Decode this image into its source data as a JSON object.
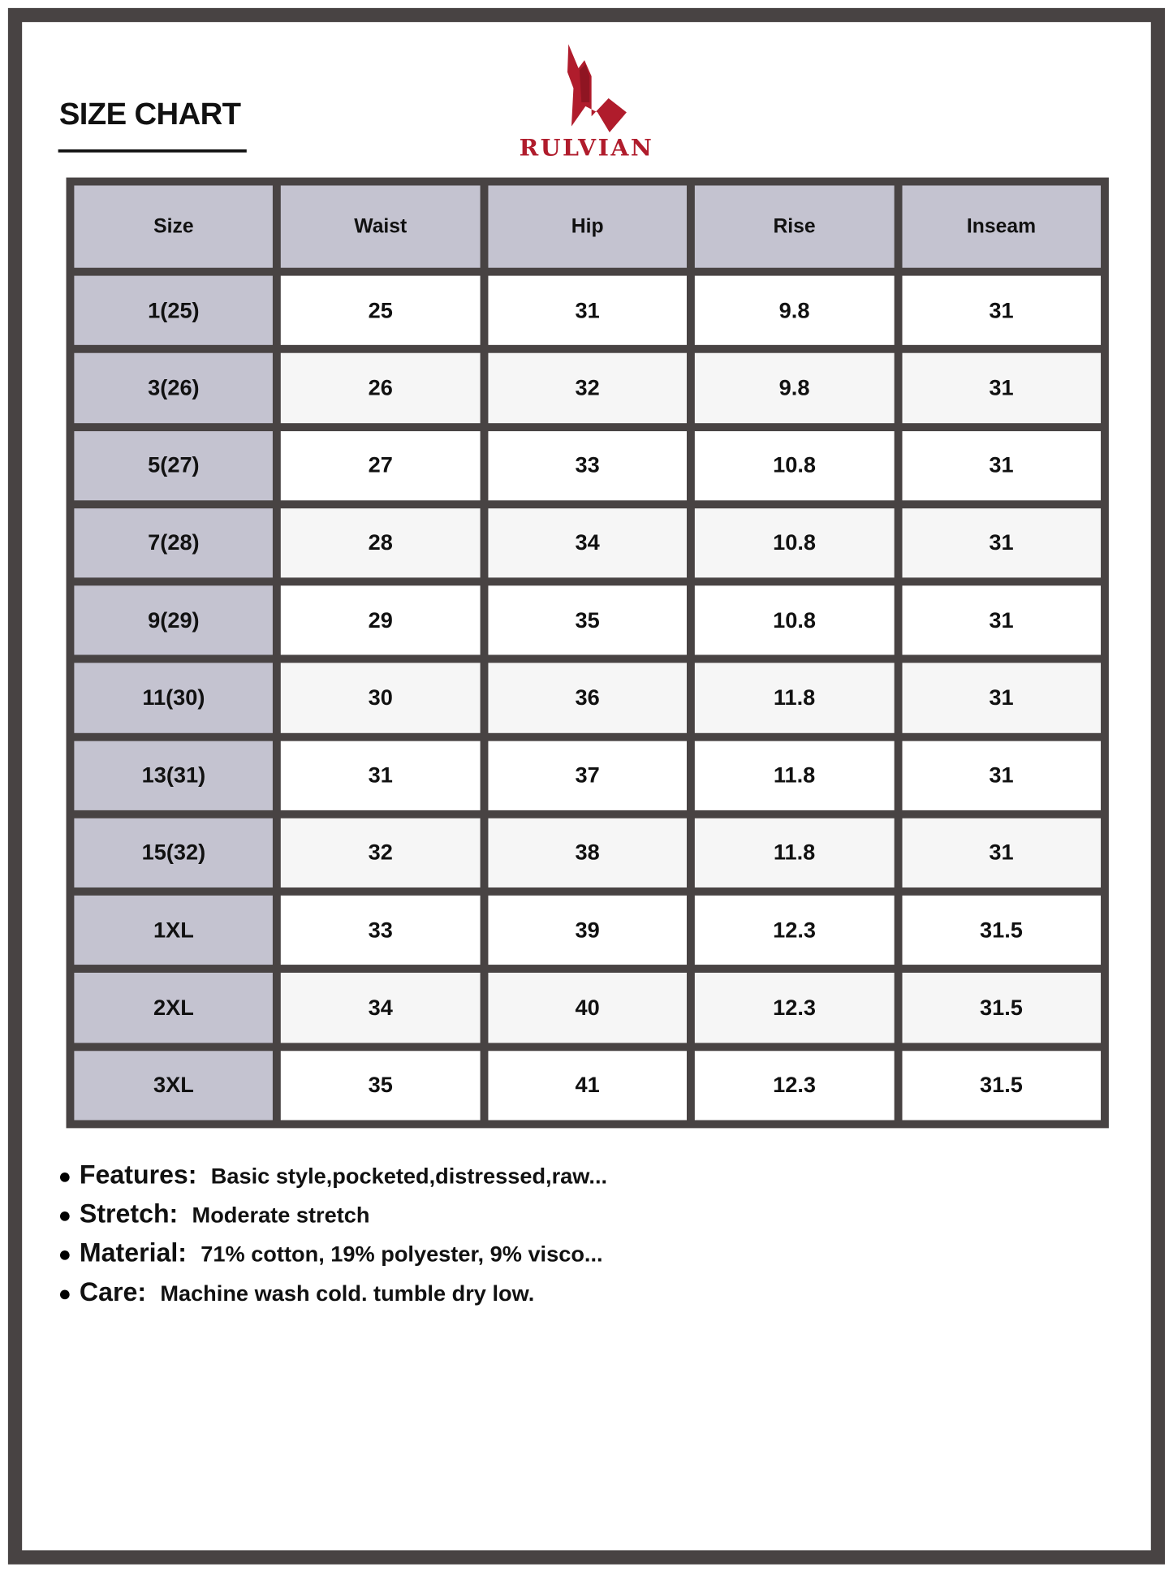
{
  "title": "SIZE CHART",
  "brand": {
    "name": "RULVIAN",
    "color": "#b01c2c"
  },
  "table": {
    "headers": [
      "Size",
      "Waist",
      "Hip",
      "Rise",
      "Inseam"
    ],
    "rows": [
      [
        "1(25)",
        "25",
        "31",
        "9.8",
        "31"
      ],
      [
        "3(26)",
        "26",
        "32",
        "9.8",
        "31"
      ],
      [
        "5(27)",
        "27",
        "33",
        "10.8",
        "31"
      ],
      [
        "7(28)",
        "28",
        "34",
        "10.8",
        "31"
      ],
      [
        "9(29)",
        "29",
        "35",
        "10.8",
        "31"
      ],
      [
        "11(30)",
        "30",
        "36",
        "11.8",
        "31"
      ],
      [
        "13(31)",
        "31",
        "37",
        "11.8",
        "31"
      ],
      [
        "15(32)",
        "32",
        "38",
        "11.8",
        "31"
      ],
      [
        "1XL",
        "33",
        "39",
        "12.3",
        "31.5"
      ],
      [
        "2XL",
        "34",
        "40",
        "12.3",
        "31.5"
      ],
      [
        "3XL",
        "35",
        "41",
        "12.3",
        "31.5"
      ]
    ]
  },
  "notes": [
    {
      "label": "Features:",
      "value": "Basic style,pocketed,distressed,raw..."
    },
    {
      "label": "Stretch:",
      "value": "Moderate stretch"
    },
    {
      "label": "Material:",
      "value": "71% cotton, 19% polyester, 9% visco..."
    },
    {
      "label": "Care:",
      "value": "Machine wash cold. tumble dry low."
    }
  ]
}
